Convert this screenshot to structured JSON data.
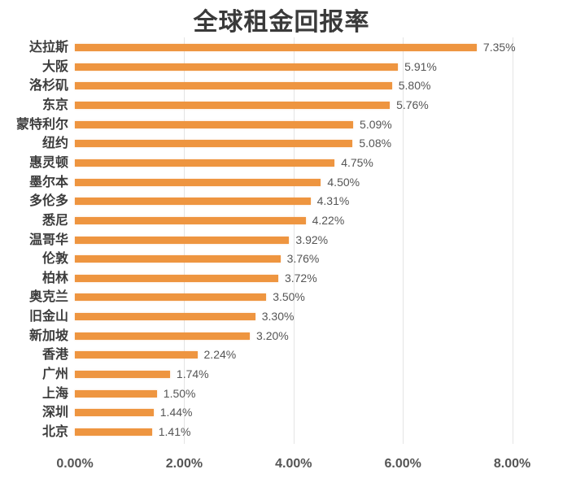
{
  "chart_data": {
    "type": "bar",
    "orientation": "horizontal",
    "title": "全球租金回报率",
    "xlabel": "",
    "ylabel": "",
    "xlim": [
      0,
      8
    ],
    "x_ticks": [
      "0.00%",
      "2.00%",
      "4.00%",
      "6.00%",
      "8.00%"
    ],
    "grid": "faint vertical gridlines",
    "legend": "none",
    "bar_color": "#ee9540",
    "categories": [
      "达拉斯",
      "大阪",
      "洛杉矶",
      "东京",
      "蒙特利尔",
      "纽约",
      "惠灵顿",
      "墨尔本",
      "多伦多",
      "悉尼",
      "温哥华",
      "伦敦",
      "柏林",
      "奥克兰",
      "旧金山",
      "新加坡",
      "香港",
      "广州",
      "上海",
      "深圳",
      "北京"
    ],
    "values": [
      7.35,
      5.91,
      5.8,
      5.76,
      5.09,
      5.08,
      4.75,
      4.5,
      4.31,
      4.22,
      3.92,
      3.76,
      3.72,
      3.5,
      3.3,
      3.2,
      2.24,
      1.74,
      1.5,
      1.44,
      1.41
    ],
    "value_labels": [
      "7.35%",
      "5.91%",
      "5.80%",
      "5.76%",
      "5.09%",
      "5.08%",
      "4.75%",
      "4.50%",
      "4.31%",
      "4.22%",
      "3.92%",
      "3.76%",
      "3.72%",
      "3.50%",
      "3.30%",
      "3.20%",
      "2.24%",
      "1.74%",
      "1.50%",
      "1.44%",
      "1.41%"
    ]
  },
  "colors": {
    "bar": "#ee9540",
    "title_text": "#3a3a3a",
    "label_text": "#3c3c3c",
    "value_text": "#555555",
    "gridline": "#e4e4e4"
  }
}
